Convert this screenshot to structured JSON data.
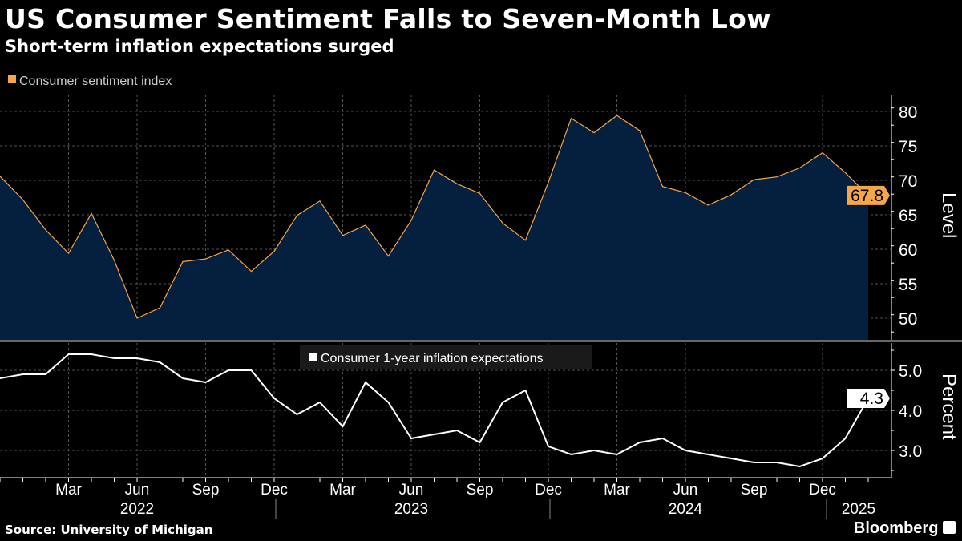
{
  "title": "US Consumer Sentiment Falls to Seven-Month Low",
  "subtitle": "Short-term inflation expectations surged",
  "source": "Source: University of Michigan",
  "brand": "Bloomberg",
  "colors": {
    "sentiment_line": "#f5a54a",
    "sentiment_fill": "#05203f",
    "expectations_line": "#ffffff",
    "background": "#000000"
  },
  "chart_data": [
    {
      "type": "area",
      "legend": "Consumer sentiment index",
      "ylabel": "Level",
      "ylim": [
        47,
        82
      ],
      "yticks": [
        50,
        55,
        60,
        65,
        70,
        75,
        80
      ],
      "last_value_label": "67.8",
      "x": [
        "2021-12",
        "2022-01",
        "2022-02",
        "2022-03",
        "2022-04",
        "2022-05",
        "2022-06",
        "2022-07",
        "2022-08",
        "2022-09",
        "2022-10",
        "2022-11",
        "2022-12",
        "2023-01",
        "2023-02",
        "2023-03",
        "2023-04",
        "2023-05",
        "2023-06",
        "2023-07",
        "2023-08",
        "2023-09",
        "2023-10",
        "2023-11",
        "2023-12",
        "2024-01",
        "2024-02",
        "2024-03",
        "2024-04",
        "2024-05",
        "2024-06",
        "2024-07",
        "2024-08",
        "2024-09",
        "2024-10",
        "2024-11",
        "2024-12",
        "2025-01",
        "2025-02"
      ],
      "values": [
        70.6,
        67.2,
        62.8,
        59.4,
        65.2,
        58.4,
        50.0,
        51.5,
        58.2,
        58.6,
        59.9,
        56.8,
        59.7,
        64.9,
        67.0,
        62.0,
        63.5,
        59.0,
        64.2,
        71.5,
        69.5,
        68.1,
        63.8,
        61.3,
        69.7,
        79.0,
        76.9,
        79.4,
        77.2,
        69.1,
        68.2,
        66.4,
        67.9,
        70.1,
        70.5,
        71.8,
        74.0,
        71.1,
        67.8
      ],
      "grid": true
    },
    {
      "type": "line",
      "legend": "Consumer 1-year inflation expectations",
      "ylabel": "Percent",
      "ylim": [
        2.3,
        5.6
      ],
      "yticks": [
        "3.0",
        "4.0",
        "5.0"
      ],
      "last_value_label": "4.3",
      "values": [
        4.8,
        4.9,
        4.9,
        5.4,
        5.4,
        5.3,
        5.3,
        5.2,
        4.8,
        4.7,
        5.0,
        5.0,
        4.3,
        3.9,
        4.2,
        3.6,
        4.7,
        4.2,
        3.3,
        3.4,
        3.5,
        3.2,
        4.2,
        4.5,
        3.1,
        2.9,
        3.0,
        2.9,
        3.2,
        3.3,
        3.0,
        2.9,
        2.8,
        2.7,
        2.7,
        2.6,
        2.8,
        3.3,
        4.3
      ],
      "grid": true
    }
  ],
  "x_axis": {
    "month_labels": [
      {
        "label": "Mar",
        "i": 3
      },
      {
        "label": "Jun",
        "i": 6
      },
      {
        "label": "Sep",
        "i": 9
      },
      {
        "label": "Dec",
        "i": 12
      },
      {
        "label": "Mar",
        "i": 15
      },
      {
        "label": "Jun",
        "i": 18
      },
      {
        "label": "Sep",
        "i": 21
      },
      {
        "label": "Dec",
        "i": 24
      },
      {
        "label": "Mar",
        "i": 27
      },
      {
        "label": "Jun",
        "i": 30
      },
      {
        "label": "Sep",
        "i": 33
      },
      {
        "label": "Dec",
        "i": 36
      }
    ],
    "year_labels": [
      "2022",
      "2023",
      "2024",
      "2025"
    ]
  }
}
